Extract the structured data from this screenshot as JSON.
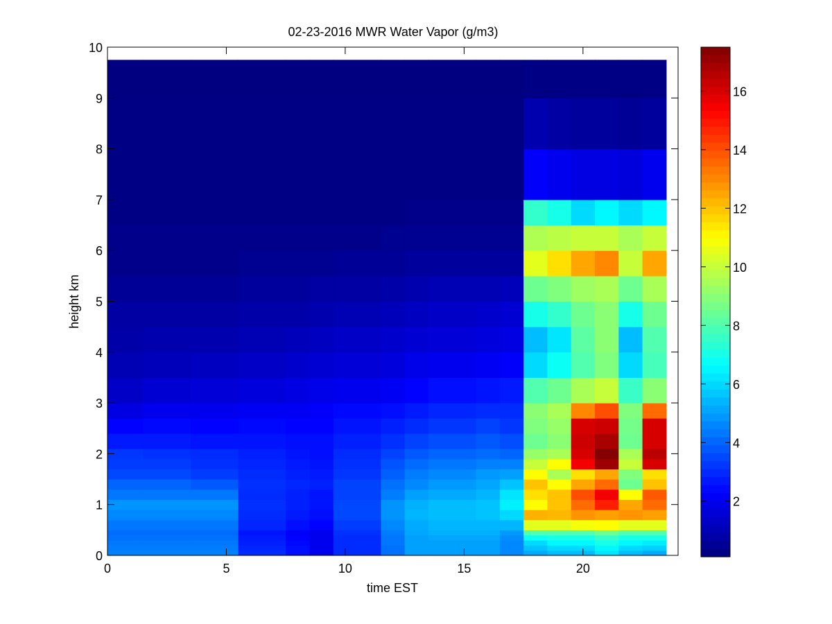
{
  "chart_data": {
    "type": "heatmap",
    "title": "02-23-2016 MWR Water Vapor (g/m3)",
    "xlabel": "time EST",
    "ylabel": "height km",
    "xlim": [
      0,
      24
    ],
    "ylim": [
      0,
      10
    ],
    "xticks": [
      0,
      5,
      10,
      15,
      20
    ],
    "yticks": [
      0,
      1,
      2,
      3,
      4,
      5,
      6,
      7,
      8,
      9,
      10
    ],
    "colorbar": {
      "colormap": "jet",
      "range": [
        0.1,
        17.5
      ],
      "ticks": [
        2,
        4,
        6,
        8,
        10,
        12,
        14,
        16
      ]
    },
    "x_edges": [
      0,
      1.5,
      3.5,
      5.5,
      7.5,
      8.5,
      9.5,
      11.5,
      12.5,
      13.5,
      15.5,
      16.5,
      17.5,
      18.5,
      19.5,
      20.5,
      21.5,
      22.5,
      23.5
    ],
    "y_edges": [
      0,
      0.1,
      0.2,
      0.3,
      0.4,
      0.5,
      0.7,
      0.9,
      1.1,
      1.3,
      1.5,
      1.7,
      1.9,
      2.1,
      2.4,
      2.7,
      3.0,
      3.5,
      4.0,
      4.5,
      5.0,
      5.5,
      6.0,
      6.5,
      7.0,
      8.0,
      9.0,
      9.75
    ],
    "values": [
      [
        4.5,
        4.5,
        4.5,
        3.0,
        2.5,
        2.0,
        3.0,
        4.2,
        5.0,
        5.0,
        5.0,
        4.6,
        5.2,
        5.5,
        5.5,
        6.2,
        5.5,
        5.2
      ],
      [
        4.4,
        4.4,
        4.4,
        2.9,
        2.5,
        2.0,
        3.0,
        4.2,
        5.0,
        5.0,
        5.0,
        4.6,
        5.6,
        6.0,
        6.0,
        6.5,
        6.0,
        5.8
      ],
      [
        4.3,
        4.3,
        4.3,
        2.8,
        2.4,
        2.0,
        3.0,
        4.3,
        5.0,
        5.0,
        5.0,
        4.6,
        6.0,
        6.5,
        6.5,
        7.0,
        6.5,
        6.3
      ],
      [
        4.2,
        4.2,
        4.2,
        2.7,
        2.3,
        2.0,
        3.0,
        4.3,
        5.0,
        5.1,
        5.1,
        4.7,
        6.8,
        7.0,
        7.0,
        7.5,
        7.0,
        7.0
      ],
      [
        4.1,
        4.1,
        4.1,
        2.6,
        2.2,
        2.0,
        3.1,
        4.4,
        5.1,
        5.3,
        5.3,
        4.9,
        8.0,
        8.0,
        8.0,
        8.5,
        8.0,
        8.0
      ],
      [
        4.3,
        4.3,
        4.3,
        2.9,
        2.5,
        2.3,
        3.3,
        4.6,
        5.2,
        5.4,
        5.4,
        5.4,
        10.5,
        10.5,
        10.8,
        11.0,
        10.5,
        10.5
      ],
      [
        4.6,
        4.6,
        4.6,
        3.0,
        2.7,
        2.5,
        3.5,
        4.8,
        5.4,
        5.5,
        5.6,
        6.0,
        12.3,
        12.2,
        12.8,
        12.6,
        12.8,
        12.6
      ],
      [
        4.8,
        4.8,
        4.8,
        3.1,
        2.8,
        2.6,
        3.5,
        4.8,
        5.3,
        5.5,
        5.6,
        6.4,
        11.0,
        12.0,
        13.5,
        14.8,
        12.5,
        13.5
      ],
      [
        4.3,
        4.3,
        4.3,
        3.0,
        2.8,
        2.6,
        3.4,
        4.4,
        5.0,
        5.2,
        5.4,
        6.2,
        11.5,
        12.0,
        14.0,
        15.5,
        11.0,
        13.8
      ],
      [
        4.0,
        4.0,
        3.8,
        3.1,
        2.9,
        2.8,
        3.4,
        4.2,
        4.6,
        4.9,
        5.1,
        5.6,
        12.0,
        11.0,
        12.5,
        13.5,
        8.5,
        12.0
      ],
      [
        3.5,
        3.5,
        3.3,
        3.0,
        2.8,
        2.7,
        3.2,
        3.9,
        4.4,
        4.6,
        4.9,
        5.0,
        11.0,
        9.5,
        11.5,
        12.5,
        8.8,
        11.5
      ],
      [
        3.3,
        3.3,
        3.1,
        2.9,
        2.7,
        2.6,
        3.1,
        3.7,
        4.1,
        4.3,
        4.5,
        4.5,
        10.0,
        11.0,
        15.5,
        17.0,
        10.0,
        16.0
      ],
      [
        3.2,
        3.1,
        3.0,
        2.8,
        2.6,
        2.5,
        3.0,
        3.4,
        3.8,
        4.0,
        4.1,
        4.0,
        9.2,
        9.5,
        16.0,
        17.4,
        9.5,
        16.5
      ],
      [
        2.7,
        2.7,
        2.6,
        2.6,
        2.5,
        2.5,
        2.8,
        3.1,
        3.4,
        3.6,
        3.8,
        3.6,
        8.5,
        9.0,
        16.2,
        16.8,
        8.5,
        16.0
      ],
      [
        2.3,
        2.4,
        2.3,
        2.4,
        2.3,
        2.3,
        2.6,
        2.8,
        3.0,
        3.2,
        3.4,
        3.2,
        8.8,
        9.2,
        16.0,
        16.2,
        8.6,
        16.0
      ],
      [
        1.8,
        2.0,
        2.0,
        2.1,
        2.1,
        2.2,
        2.4,
        2.5,
        2.7,
        2.9,
        3.0,
        3.0,
        9.0,
        9.5,
        13.0,
        14.0,
        8.8,
        13.5
      ],
      [
        1.3,
        1.5,
        1.6,
        1.7,
        1.8,
        1.9,
        2.0,
        2.1,
        2.3,
        2.5,
        2.6,
        2.7,
        8.0,
        8.5,
        9.5,
        10.0,
        7.6,
        9.0
      ],
      [
        1.0,
        1.1,
        1.2,
        1.3,
        1.4,
        1.5,
        1.6,
        1.7,
        1.9,
        2.0,
        2.1,
        2.2,
        6.0,
        6.8,
        8.0,
        8.8,
        6.0,
        7.8
      ],
      [
        0.8,
        0.9,
        0.9,
        1.0,
        1.1,
        1.2,
        1.3,
        1.4,
        1.5,
        1.6,
        1.7,
        1.8,
        5.5,
        6.2,
        8.2,
        9.0,
        5.5,
        8.0
      ],
      [
        0.7,
        0.7,
        0.7,
        0.8,
        0.8,
        0.9,
        1.0,
        1.1,
        1.2,
        1.3,
        1.4,
        1.5,
        7.0,
        7.5,
        8.5,
        9.0,
        7.0,
        8.5
      ],
      [
        0.5,
        0.5,
        0.5,
        0.6,
        0.6,
        0.7,
        0.7,
        0.8,
        0.9,
        1.0,
        1.0,
        1.1,
        8.5,
        8.8,
        9.3,
        9.5,
        8.5,
        9.5
      ],
      [
        0.3,
        0.3,
        0.3,
        0.4,
        0.4,
        0.4,
        0.5,
        0.5,
        0.6,
        0.6,
        0.6,
        0.6,
        10.5,
        11.5,
        12.5,
        13.0,
        10.0,
        12.5
      ],
      [
        0.3,
        0.3,
        0.3,
        0.3,
        0.3,
        0.3,
        0.3,
        0.4,
        0.4,
        0.4,
        0.4,
        0.4,
        9.6,
        9.8,
        10.0,
        10.0,
        9.5,
        10.0
      ],
      [
        0.2,
        0.2,
        0.2,
        0.2,
        0.2,
        0.2,
        0.2,
        0.2,
        0.3,
        0.3,
        0.3,
        0.3,
        7.5,
        7.0,
        6.0,
        6.5,
        6.0,
        6.5
      ],
      [
        0.2,
        0.2,
        0.2,
        0.2,
        0.2,
        0.2,
        0.2,
        0.2,
        0.2,
        0.2,
        0.2,
        0.2,
        2.2,
        2.0,
        1.8,
        1.8,
        1.7,
        2.0
      ],
      [
        0.2,
        0.2,
        0.2,
        0.2,
        0.2,
        0.2,
        0.2,
        0.2,
        0.2,
        0.2,
        0.2,
        0.2,
        0.9,
        0.7,
        0.6,
        0.6,
        0.5,
        0.6
      ],
      [
        0.1,
        0.1,
        0.1,
        0.1,
        0.1,
        0.1,
        0.1,
        0.1,
        0.1,
        0.1,
        0.1,
        0.1,
        0.2,
        0.2,
        0.2,
        0.2,
        0.2,
        0.2
      ]
    ]
  }
}
